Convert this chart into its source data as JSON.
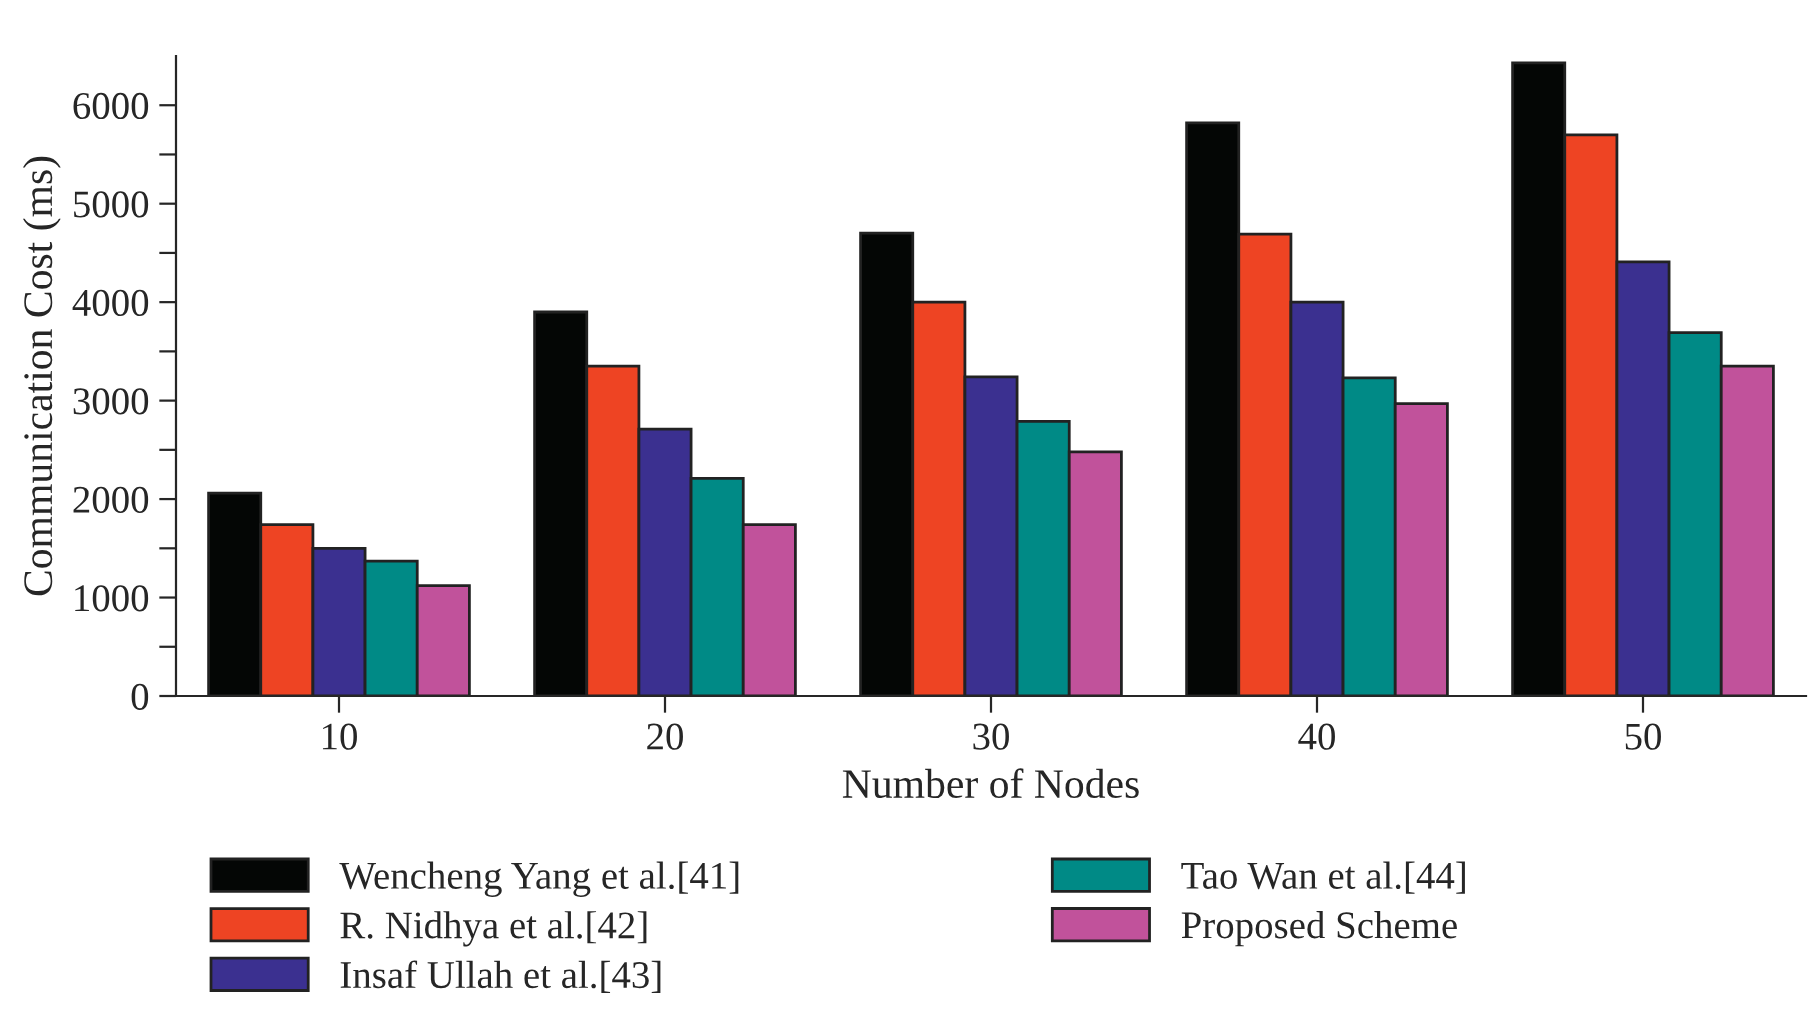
{
  "chart_data": {
    "type": "bar",
    "xlabel": "Number of Nodes",
    "ylabel": "Communication Cost (ms)",
    "categories": [
      "10",
      "20",
      "30",
      "40",
      "50"
    ],
    "series": [
      {
        "name": "Wencheng Yang et al.[41]",
        "color": "#040605",
        "values": [
          2060,
          3900,
          4700,
          5820,
          6430
        ]
      },
      {
        "name": "R. Nidhya et al.[42]",
        "color": "#ee4423",
        "values": [
          1740,
          3350,
          4000,
          4690,
          5700
        ]
      },
      {
        "name": "Insaf Ullah et al.[43]",
        "color": "#3b3090",
        "values": [
          1500,
          2710,
          3240,
          4000,
          4410
        ]
      },
      {
        "name": "Tao Wan et al.[44]",
        "color": "#008a86",
        "values": [
          1370,
          2210,
          2790,
          3230,
          3690
        ]
      },
      {
        "name": "Proposed Scheme",
        "color": "#c1529b",
        "values": [
          1120,
          1740,
          2480,
          2970,
          3350
        ]
      }
    ],
    "ylim": [
      0,
      6500
    ],
    "yticks": [
      0,
      {
        "value": 500,
        "label": null
      },
      1000,
      {
        "value": 1500,
        "label": null
      },
      2000,
      {
        "value": 2500,
        "label": null
      },
      3000,
      {
        "value": 3500,
        "label": null
      },
      4000,
      {
        "value": 4500,
        "label": null
      },
      5000,
      {
        "value": 5500,
        "label": null
      },
      6000
    ],
    "grid": false,
    "legend": "bottom"
  }
}
